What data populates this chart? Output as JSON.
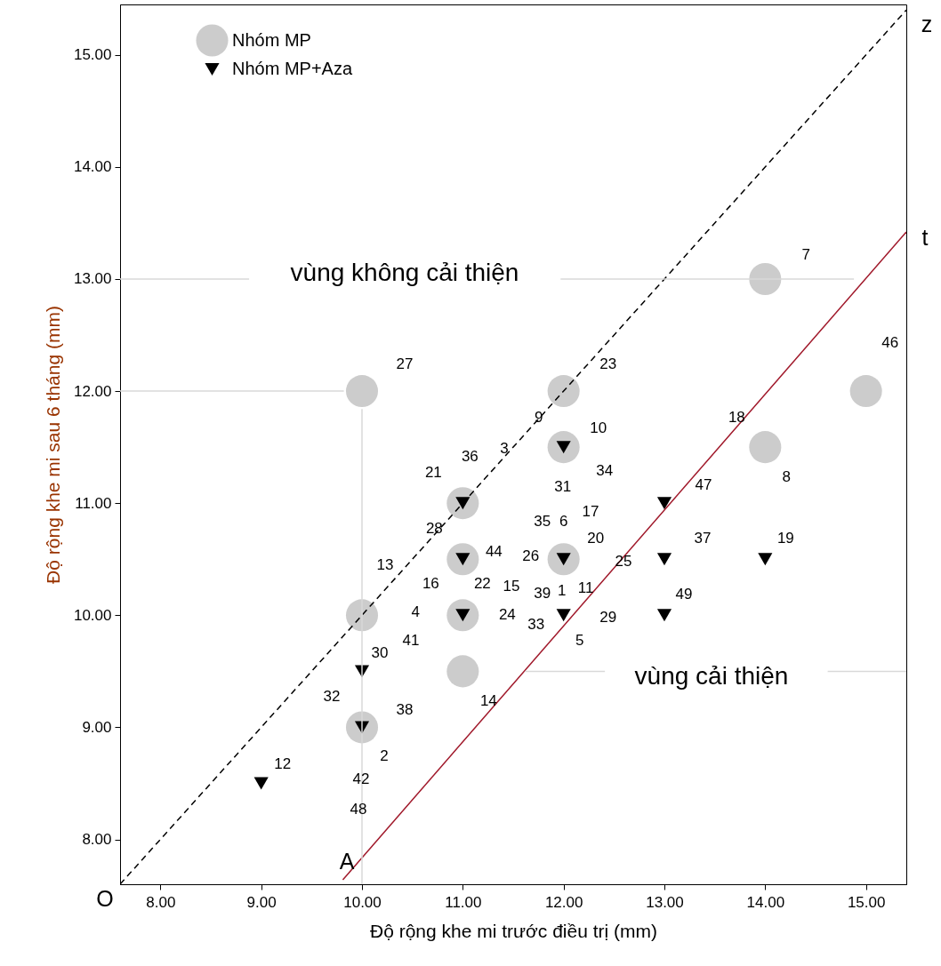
{
  "chart_data": {
    "type": "scatter",
    "xlabel": "Độ rộng khe mi trước điều trị (mm)",
    "ylabel": "Độ rộng khe mi sau 6 tháng (mm)",
    "xlim": [
      7.6,
      15.4
    ],
    "ylim": [
      7.6,
      15.45
    ],
    "xticks": [
      {
        "value": 8,
        "label": "8.00"
      },
      {
        "value": 9,
        "label": "9.00"
      },
      {
        "value": 10,
        "label": "10.00"
      },
      {
        "value": 11,
        "label": "11.00"
      },
      {
        "value": 12,
        "label": "12.00"
      },
      {
        "value": 13,
        "label": "13.00"
      },
      {
        "value": 14,
        "label": "14.00"
      },
      {
        "value": 15,
        "label": "15.00"
      }
    ],
    "yticks": [
      {
        "value": 8,
        "label": "8.00"
      },
      {
        "value": 9,
        "label": "9.00"
      },
      {
        "value": 10,
        "label": "10.00"
      },
      {
        "value": 11,
        "label": "11.00"
      },
      {
        "value": 12,
        "label": "12.00"
      },
      {
        "value": 13,
        "label": "13.00"
      },
      {
        "value": 14,
        "label": "14.00"
      },
      {
        "value": 15,
        "label": "15.00"
      }
    ],
    "grid": false,
    "legend": "top left",
    "series": [
      {
        "name": "Nhóm MP",
        "marker": "circle",
        "color": "#cccccc",
        "x": [
          10,
          12,
          12,
          11,
          11,
          12,
          10,
          11,
          11,
          10,
          14,
          14,
          15
        ],
        "values": [
          12,
          12,
          11.5,
          11,
          10.5,
          10.5,
          10,
          10,
          9.5,
          9,
          13,
          11.5,
          12
        ]
      },
      {
        "name": "Nhóm MP+Aza",
        "marker": "triangle",
        "color": "#000000",
        "x": [
          12,
          11,
          11,
          12,
          11,
          12,
          10,
          10,
          9,
          13,
          13,
          14,
          13
        ],
        "values": [
          11.5,
          11,
          10.5,
          10.5,
          10,
          10,
          9.5,
          9,
          8.5,
          11,
          10.5,
          10.5,
          10
        ]
      },
      {
        "type": "line",
        "line_style": "dashed",
        "color": "#000000",
        "x": [
          7.6,
          15.4
        ],
        "values": [
          7.6,
          15.4
        ]
      },
      {
        "type": "line",
        "line_style": "solid",
        "color": "#a0182a",
        "x": [
          9.81,
          15.4
        ],
        "values": [
          7.64,
          13.42
        ]
      },
      {
        "type": "line",
        "line_style": "solid",
        "color": "#d9d9d9",
        "x": [
          7.6,
          9.82
        ],
        "values": [
          12,
          12
        ]
      },
      {
        "type": "line",
        "line_style": "solid",
        "color": "#d9d9d9",
        "x": [
          10,
          10
        ],
        "values": [
          11.84,
          7.6
        ]
      },
      {
        "type": "line",
        "line_style": "solid",
        "color": "#d9d9d9",
        "x": [
          7.6,
          8.88
        ],
        "values": [
          13,
          13
        ]
      },
      {
        "type": "line",
        "line_style": "solid",
        "color": "#d9d9d9",
        "x": [
          11.97,
          14.88
        ],
        "values": [
          13,
          13
        ]
      },
      {
        "type": "line",
        "line_style": "solid",
        "color": "#d9d9d9",
        "x": [
          11.62,
          12.41
        ],
        "values": [
          9.5,
          9.5
        ]
      },
      {
        "type": "line",
        "line_style": "solid",
        "color": "#d9d9d9",
        "x": [
          14.62,
          15.4
        ],
        "values": [
          9.5,
          9.5
        ]
      }
    ],
    "annotations": [
      "z",
      "t",
      "O",
      "A",
      "vùng không cải thiện",
      "vùng cải thiện",
      "3",
      "17",
      "25",
      "15",
      "41",
      "48",
      {
        "text": "27",
        "x": 10,
        "y": 12
      },
      {
        "text": "23",
        "x": 12,
        "y": 12
      },
      {
        "text": "9",
        "x": 12,
        "y": 12
      },
      {
        "text": "10",
        "x": 12,
        "y": 11.5
      },
      {
        "text": "36",
        "x": 11,
        "y": 11
      },
      {
        "text": "21",
        "x": 11,
        "y": 11
      },
      {
        "text": "34",
        "x": 12,
        "y": 11.5
      },
      {
        "text": "31",
        "x": 12,
        "y": 11.5
      },
      {
        "text": "47",
        "x": 13,
        "y": 11
      },
      {
        "text": "35",
        "x": 12,
        "y": 10.5
      },
      {
        "text": "6",
        "x": 12,
        "y": 10.5
      },
      {
        "text": "28",
        "x": 11,
        "y": 10.5
      },
      {
        "text": "20",
        "x": 12,
        "y": 10.5
      },
      {
        "text": "37",
        "x": 13,
        "y": 10.5
      },
      {
        "text": "19",
        "x": 14,
        "y": 10.5
      },
      {
        "text": "44",
        "x": 11,
        "y": 10.5
      },
      {
        "text": "26",
        "x": 12,
        "y": 10.5
      },
      {
        "text": "13",
        "x": 10,
        "y": 10
      },
      {
        "text": "16",
        "x": 11,
        "y": 10
      },
      {
        "text": "22",
        "x": 11,
        "y": 10
      },
      {
        "text": "39",
        "x": 12,
        "y": 10
      },
      {
        "text": "1",
        "x": 12,
        "y": 10
      },
      {
        "text": "11",
        "x": 12,
        "y": 10
      },
      {
        "text": "49",
        "x": 13,
        "y": 10
      },
      {
        "text": "4",
        "x": 11,
        "y": 10
      },
      {
        "text": "24",
        "x": 11,
        "y": 10
      },
      {
        "text": "29",
        "x": 12,
        "y": 10
      },
      {
        "text": "33",
        "x": 12,
        "y": 10
      },
      {
        "text": "5",
        "x": 12,
        "y": 10
      },
      {
        "text": "30",
        "x": 10,
        "y": 9.5
      },
      {
        "text": "14",
        "x": 11,
        "y": 9.5
      },
      {
        "text": "32",
        "x": 10,
        "y": 9
      },
      {
        "text": "38",
        "x": 10,
        "y": 9
      },
      {
        "text": "2",
        "x": 10,
        "y": 9
      },
      {
        "text": "12",
        "x": 9,
        "y": 8.5
      },
      {
        "text": "42",
        "x": 10,
        "y": 9
      },
      {
        "text": "7",
        "x": 14,
        "y": 13
      },
      {
        "text": "46",
        "x": 15,
        "y": 12
      },
      {
        "text": "18",
        "x": 14,
        "y": 11.5
      },
      {
        "text": "8",
        "x": 14,
        "y": 11.5
      }
    ]
  }
}
